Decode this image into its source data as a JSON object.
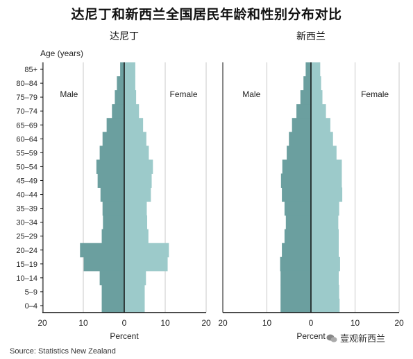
{
  "title": "达尼丁和新西兰全国居民年龄和性别分布对比",
  "source": "Source: Statistics New Zealand",
  "watermark": "壹观新西兰",
  "colors": {
    "male": "#6b9f9f",
    "female": "#9ccaca",
    "axis": "#111111",
    "grid": "#c8c8c8"
  },
  "chart_data": [
    {
      "type": "bar",
      "orientation": "horizontal-population-pyramid",
      "title": "达尼丁",
      "ylabel": "Age (years)",
      "xlabel": "Percent",
      "xlim": [
        -20,
        20
      ],
      "xticks": [
        "20",
        "10",
        "0",
        "10",
        "20"
      ],
      "left_label": "Male",
      "right_label": "Female",
      "categories": [
        "85+",
        "80–84",
        "75–79",
        "70–74",
        "65–69",
        "60–64",
        "55–59",
        "50–54",
        "45–49",
        "40–44",
        "35–39",
        "30–34",
        "25–29",
        "20–24",
        "15–19",
        "10–14",
        "5–9",
        "0–4"
      ],
      "series": [
        {
          "name": "Male",
          "values": [
            1.0,
            1.8,
            2.3,
            3.0,
            4.3,
            5.3,
            6.0,
            6.8,
            6.5,
            5.8,
            5.3,
            5.2,
            5.5,
            10.8,
            9.9,
            6.0,
            5.5,
            5.5
          ]
        },
        {
          "name": "Female",
          "values": [
            2.7,
            2.7,
            2.9,
            3.6,
            4.6,
            5.4,
            6.0,
            7.0,
            6.7,
            6.5,
            5.5,
            5.6,
            5.9,
            10.9,
            10.6,
            5.3,
            5.0,
            5.0
          ]
        }
      ]
    },
    {
      "type": "bar",
      "orientation": "horizontal-population-pyramid",
      "title": "新西兰",
      "ylabel": "",
      "xlabel": "Percent",
      "xlim": [
        -20,
        20
      ],
      "xticks": [
        "20",
        "10",
        "0",
        "10",
        "20"
      ],
      "left_label": "Male",
      "right_label": "Female",
      "categories": [
        "85+",
        "80–84",
        "75–79",
        "70–74",
        "65–69",
        "60–64",
        "55–59",
        "50–54",
        "45–49",
        "40–44",
        "35–39",
        "30–34",
        "25–29",
        "20–24",
        "15–19",
        "10–14",
        "5–9",
        "0–4"
      ],
      "series": [
        {
          "name": "Male",
          "values": [
            1.2,
            1.7,
            2.4,
            3.3,
            4.3,
            5.0,
            5.5,
            6.5,
            6.8,
            6.6,
            6.0,
            5.7,
            6.0,
            6.6,
            7.0,
            6.9,
            6.9,
            6.9
          ]
        },
        {
          "name": "Female",
          "values": [
            2.1,
            2.3,
            2.6,
            3.4,
            4.4,
            5.0,
            5.8,
            7.0,
            7.0,
            7.1,
            6.4,
            6.2,
            6.3,
            6.3,
            6.6,
            6.3,
            6.4,
            6.5
          ]
        }
      ]
    }
  ]
}
